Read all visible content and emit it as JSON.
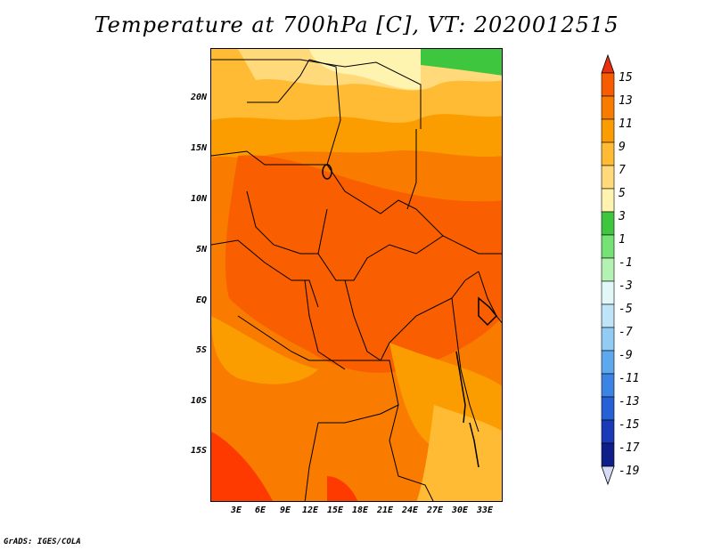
{
  "title": "Temperature at 700hPa [C], VT: 2020012515",
  "credit": "GrADS: IGES/COLA",
  "axes": {
    "y_ticks": [
      "20N",
      "15N",
      "10N",
      "5N",
      "EQ",
      "5S",
      "10S",
      "15S"
    ],
    "x_ticks": [
      "3E",
      "6E",
      "9E",
      "12E",
      "15E",
      "18E",
      "21E",
      "24E",
      "27E",
      "30E",
      "33E"
    ]
  },
  "colorbar": {
    "labels": [
      "15",
      "13",
      "11",
      "9",
      "7",
      "5",
      "3",
      "1",
      "-1",
      "-3",
      "-5",
      "-7",
      "-9",
      "-11",
      "-13",
      "-15",
      "-17",
      "-19"
    ],
    "colors": [
      "#ff3a00",
      "#f85c00",
      "#f97c00",
      "#fb9d00",
      "#ffbb33",
      "#ffd97a",
      "#fff3b0",
      "#3ec63e",
      "#74e274",
      "#b4f2b4",
      "#e2f7f8",
      "#bfe3f7",
      "#92cbf3",
      "#5ea8ee",
      "#3b84e4",
      "#2660d6",
      "#1a3ab8",
      "#0f1f8a",
      "#0a0f66"
    ],
    "top_arrow_color": "#e83010",
    "bottom_arrow_color": "#d6dcf5"
  },
  "chart_data": {
    "type": "heatmap",
    "title": "Temperature at 700hPa [C], VT: 2020012515",
    "variable": "Temperature at 700hPa",
    "units": "C",
    "valid_time": "2020012515",
    "lon_range": [
      0,
      35
    ],
    "lat_range": [
      -20,
      24
    ],
    "value_range_shown": [
      3,
      15
    ],
    "contour_levels": [
      -19,
      -17,
      -15,
      -13,
      -11,
      -9,
      -7,
      -5,
      -3,
      -1,
      1,
      3,
      5,
      7,
      9,
      11,
      13,
      15
    ]
  }
}
